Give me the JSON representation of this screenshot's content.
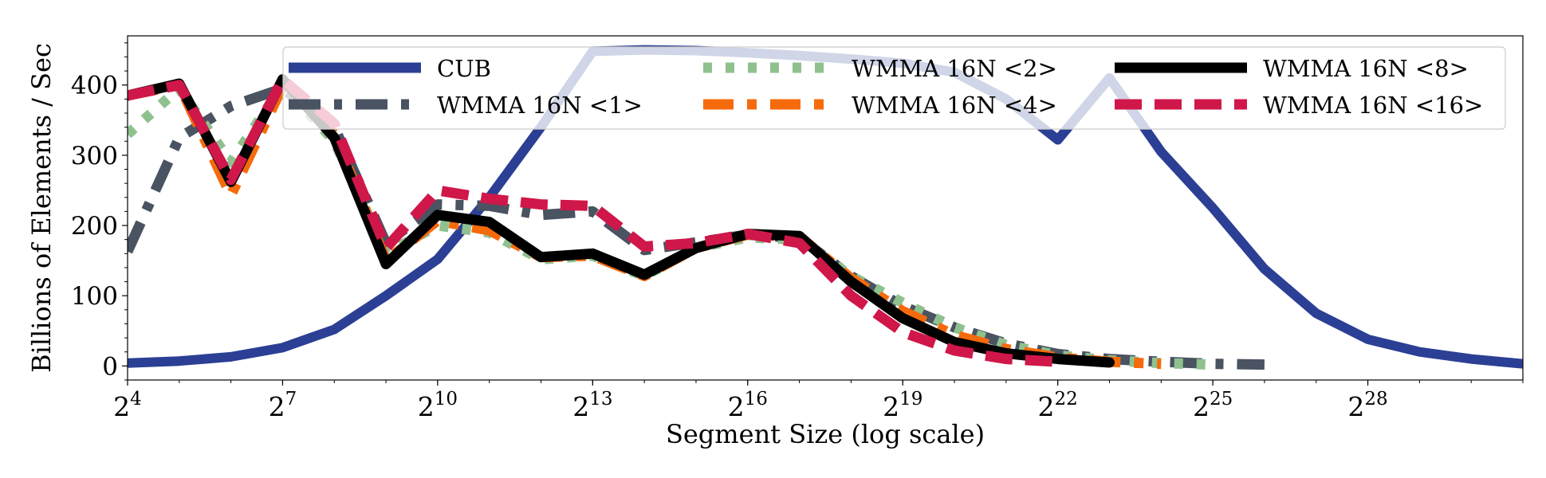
{
  "chart_data": {
    "type": "line",
    "title": "",
    "xlabel": "Segment Size (log scale)",
    "ylabel": "Billions of Elements / Sec",
    "x_scale": "log2",
    "xlim": [
      16,
      2147483648
    ],
    "ylim": [
      -20,
      470
    ],
    "x_ticks": [
      {
        "value": 16,
        "base": "2",
        "exp": "4"
      },
      {
        "value": 128,
        "base": "2",
        "exp": "7"
      },
      {
        "value": 1024,
        "base": "2",
        "exp": "10"
      },
      {
        "value": 8192,
        "base": "2",
        "exp": "13"
      },
      {
        "value": 65536,
        "base": "2",
        "exp": "16"
      },
      {
        "value": 524288,
        "base": "2",
        "exp": "19"
      },
      {
        "value": 4194304,
        "base": "2",
        "exp": "22"
      },
      {
        "value": 33554432,
        "base": "2",
        "exp": "25"
      },
      {
        "value": 268435456,
        "base": "2",
        "exp": "28"
      }
    ],
    "y_ticks": [
      0,
      100,
      200,
      300,
      400
    ],
    "legend_position": "top-right",
    "grid": false,
    "series": [
      {
        "name": "CUB",
        "color": "#2b3f94",
        "dash": "solid",
        "x": [
          16,
          32,
          64,
          128,
          256,
          512,
          1024,
          2048,
          4096,
          8192,
          16384,
          32768,
          65536,
          131072,
          262144,
          524288,
          1048576,
          2097152,
          4194304,
          8388608,
          16777216,
          33554432,
          67108864,
          134217728,
          268435456,
          536870912,
          1073741824,
          2147483648
        ],
        "values": [
          4,
          7,
          13,
          26,
          52,
          100,
          152,
          240,
          340,
          448,
          450,
          449,
          446,
          442,
          437,
          431,
          418,
          380,
          322,
          410,
          305,
          225,
          138,
          75,
          38,
          20,
          10,
          3
        ]
      },
      {
        "name": "WMMA 16N <1>",
        "color": "#4a5361",
        "dash": "dashdot",
        "x": [
          16,
          32,
          64,
          128,
          256,
          512,
          1024,
          2048,
          4096,
          8192,
          16384,
          32768,
          65536,
          131072,
          262144,
          524288,
          1048576,
          2097152,
          4194304,
          8388608,
          16777216,
          33554432,
          67108864
        ],
        "values": [
          163,
          325,
          370,
          395,
          340,
          175,
          230,
          228,
          215,
          220,
          165,
          176,
          187,
          182,
          128,
          85,
          55,
          32,
          17,
          10,
          6,
          3,
          2
        ]
      },
      {
        "name": "WMMA 16N <2>",
        "color": "#8fc18f",
        "dash": "dotted",
        "x": [
          16,
          32,
          64,
          128,
          256,
          512,
          1024,
          2048,
          4096,
          8192,
          16384,
          32768,
          65536,
          131072,
          262144,
          524288,
          1048576,
          2097152,
          4194304,
          8388608,
          16777216,
          33554432
        ],
        "values": [
          330,
          395,
          290,
          400,
          320,
          160,
          200,
          190,
          152,
          157,
          128,
          168,
          183,
          180,
          128,
          90,
          55,
          30,
          15,
          8,
          4,
          2
        ]
      },
      {
        "name": "WMMA 16N <4>",
        "color": "#f56b0c",
        "dash": "dashdotlong",
        "x": [
          16,
          32,
          64,
          128,
          256,
          512,
          1024,
          2048,
          4096,
          8192,
          16384,
          32768,
          65536,
          131072,
          262144,
          524288,
          1048576,
          2097152,
          4194304,
          8388608,
          16777216
        ],
        "values": [
          385,
          400,
          243,
          398,
          330,
          150,
          207,
          193,
          155,
          157,
          128,
          168,
          187,
          184,
          125,
          78,
          44,
          24,
          12,
          6,
          3
        ]
      },
      {
        "name": "WMMA 16N <8>",
        "color": "#000000",
        "dash": "solid",
        "x": [
          16,
          32,
          64,
          128,
          256,
          512,
          1024,
          2048,
          4096,
          8192,
          16384,
          32768,
          65536,
          131072,
          262144,
          524288,
          1048576,
          2097152,
          4194304,
          8388608
        ],
        "values": [
          385,
          402,
          262,
          408,
          325,
          145,
          215,
          205,
          155,
          160,
          130,
          168,
          188,
          185,
          120,
          68,
          34,
          18,
          10,
          5
        ]
      },
      {
        "name": "WMMA 16N <16>",
        "color": "#d0174a",
        "dash": "dashed",
        "x": [
          16,
          32,
          64,
          128,
          256,
          512,
          1024,
          2048,
          4096,
          8192,
          16384,
          32768,
          65536,
          131072,
          262144,
          524288,
          1048576,
          2097152,
          4194304
        ],
        "values": [
          385,
          400,
          265,
          408,
          345,
          168,
          250,
          238,
          230,
          228,
          170,
          175,
          188,
          175,
          100,
          48,
          22,
          10,
          6
        ]
      }
    ]
  }
}
